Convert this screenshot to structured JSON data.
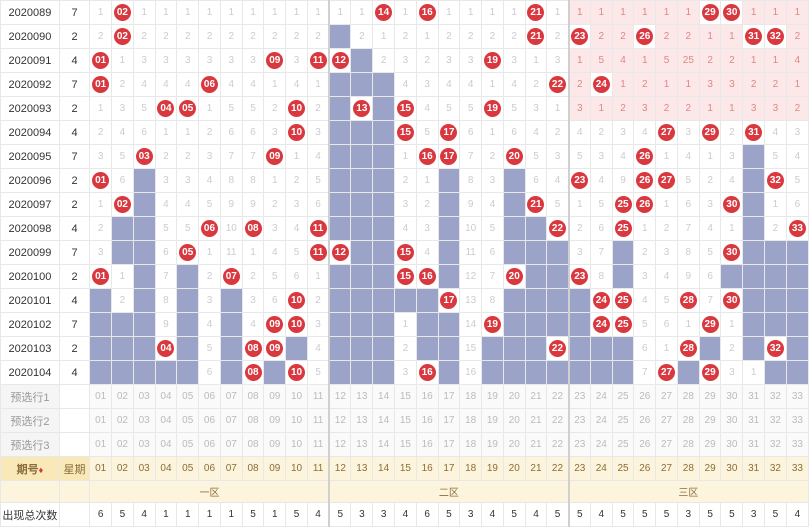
{
  "colors": {
    "ball": "#d9383f",
    "blue": "#9ba3c9",
    "pink": "#fce8e8",
    "header_bg": "#f9e8b8",
    "header_fg": "#8a6d3b",
    "border": "#e8e8e8",
    "muted": "#ccc"
  },
  "zones": {
    "z1": {
      "label": "一区",
      "start": 1,
      "end": 11
    },
    "z2": {
      "label": "二区",
      "start": 12,
      "end": 22
    },
    "z3": {
      "label": "三区",
      "start": 23,
      "end": 33
    }
  },
  "header": {
    "period": "期号",
    "day": "星期",
    "sort_icon": "♦"
  },
  "selection_rows": [
    "预选行1",
    "预选行2",
    "预选行3"
  ],
  "count_label": "出现总次数",
  "counts": [
    6,
    5,
    4,
    1,
    1,
    1,
    1,
    5,
    1,
    5,
    4,
    5,
    3,
    3,
    4,
    6,
    5,
    3,
    4,
    5,
    4,
    5,
    5,
    4,
    5,
    5,
    5,
    3,
    5,
    5,
    3,
    5,
    4
  ],
  "rows": [
    {
      "period": "2020089",
      "day": "7",
      "balls": [
        2,
        14,
        16,
        21,
        29,
        30
      ],
      "blue": [],
      "pink": [
        23,
        24,
        25,
        26,
        27,
        28,
        31,
        32,
        33
      ],
      "miss": {
        "1": 1,
        "3": 1,
        "4": 1,
        "5": 1,
        "6": 1,
        "7": 1,
        "8": 1,
        "9": 1,
        "10": 1,
        "11": 1,
        "12": 1,
        "13": 1,
        "15": 1,
        "17": 1,
        "18": 1,
        "19": 1,
        "20": 1,
        "22": 1,
        "23": 1,
        "24": 1,
        "25": 1,
        "26": 1,
        "27": 1,
        "28": 1,
        "31": 1,
        "32": 1,
        "33": 1
      }
    },
    {
      "period": "2020090",
      "day": "2",
      "balls": [
        2,
        21,
        23,
        26,
        31,
        32
      ],
      "blue": [
        12
      ],
      "pink": [
        24,
        25,
        27,
        28,
        29,
        30,
        33
      ],
      "miss": {
        "1": 2,
        "3": 2,
        "4": 2,
        "5": 2,
        "6": 2,
        "7": 2,
        "8": 2,
        "9": 2,
        "10": 2,
        "11": 2,
        "13": 2,
        "14": 1,
        "15": 2,
        "16": 1,
        "17": 2,
        "18": 2,
        "19": 2,
        "20": 2,
        "22": 2,
        "24": 2,
        "25": 2,
        "27": 2,
        "28": 2,
        "29": 1,
        "30": 1,
        "33": 2
      }
    },
    {
      "period": "2020091",
      "day": "4",
      "balls": [
        1,
        9,
        11,
        12,
        19
      ],
      "blue": [
        13
      ],
      "pink": [
        23,
        24,
        25,
        26,
        27,
        28,
        29,
        30,
        31,
        32,
        33
      ],
      "miss": {
        "2": 1,
        "3": 3,
        "4": 3,
        "5": 3,
        "6": 3,
        "7": 3,
        "8": 3,
        "10": 3,
        "14": 2,
        "15": 3,
        "16": 2,
        "17": 3,
        "18": 3,
        "20": 3,
        "21": 1,
        "22": 3,
        "23": 1,
        "24": 5,
        "25": 4,
        "26": 1,
        "27": 5,
        "28": 25,
        "29": 2,
        "30": 2,
        "31": 1,
        "32": 1,
        "33": 4
      }
    },
    {
      "period": "2020092",
      "day": "7",
      "balls": [
        1,
        6,
        22,
        24
      ],
      "blue": [
        12,
        13,
        14
      ],
      "pink": [
        23,
        25,
        26,
        27,
        28,
        29,
        30,
        31,
        32,
        33
      ],
      "miss": {
        "2": 2,
        "3": 4,
        "4": 4,
        "5": 4,
        "7": 4,
        "8": 4,
        "9": 1,
        "10": 4,
        "11": 1,
        "15": 4,
        "16": 3,
        "17": 4,
        "18": 4,
        "19": 1,
        "20": 4,
        "21": 2,
        "23": 2,
        "25": 1,
        "26": 2,
        "27": 1,
        "28": 1,
        "29": 3,
        "30": 3,
        "31": 2,
        "32": 2,
        "33": 1
      }
    },
    {
      "period": "2020093",
      "day": "2",
      "balls": [
        4,
        5,
        10,
        13,
        15,
        19
      ],
      "blue": [
        12,
        14
      ],
      "pink": [
        23,
        24,
        25,
        26,
        27,
        28,
        29,
        30,
        31,
        32,
        33
      ],
      "miss": {
        "1": 1,
        "2": 3,
        "3": 5,
        "6": 1,
        "7": 5,
        "8": 5,
        "9": 2,
        "11": 2,
        "16": 4,
        "17": 5,
        "18": 5,
        "20": 5,
        "21": 3,
        "22": 1,
        "23": 3,
        "24": 1,
        "25": 2,
        "26": 3,
        "27": 2,
        "28": 2,
        "29": 1,
        "30": 1,
        "31": 3,
        "32": 3,
        "33": 2
      }
    },
    {
      "period": "2020094",
      "day": "4",
      "balls": [
        10,
        15,
        17,
        27,
        29,
        31
      ],
      "blue": [
        12,
        13,
        14
      ],
      "pink": [],
      "miss": {
        "1": 2,
        "2": 4,
        "3": 6,
        "4": 1,
        "5": 1,
        "6": 2,
        "7": 6,
        "8": 6,
        "9": 3,
        "11": 3,
        "16": 5,
        "18": 6,
        "19": 1,
        "20": 6,
        "21": 4,
        "22": 2,
        "23": 4,
        "24": 2,
        "25": 3,
        "26": 4,
        "28": 3,
        "30": 2,
        "32": 4,
        "33": 3
      }
    },
    {
      "period": "2020095",
      "day": "7",
      "balls": [
        3,
        9,
        16,
        17,
        20,
        26
      ],
      "blue": [
        12,
        13,
        14,
        31
      ],
      "pink": [],
      "miss": {
        "1": 3,
        "2": 5,
        "4": 2,
        "5": 2,
        "6": 3,
        "7": 7,
        "8": 7,
        "10": 1,
        "11": 4,
        "15": 1,
        "18": 7,
        "19": 2,
        "21": 5,
        "22": 3,
        "23": 5,
        "24": 3,
        "25": 4,
        "27": 1,
        "28": 4,
        "29": 1,
        "30": 3,
        "32": 5,
        "33": 4
      }
    },
    {
      "period": "2020096",
      "day": "2",
      "balls": [
        1,
        23,
        26,
        27,
        32
      ],
      "blue": [
        3,
        12,
        13,
        14,
        17,
        20,
        31
      ],
      "pink": [],
      "miss": {
        "2": 6,
        "4": 3,
        "5": 3,
        "6": 4,
        "7": 8,
        "8": 8,
        "9": 1,
        "10": 2,
        "11": 5,
        "15": 2,
        "16": 1,
        "18": 8,
        "19": 3,
        "21": 6,
        "22": 4,
        "24": 4,
        "25": 9,
        "28": 5,
        "29": 2,
        "30": 4,
        "33": 5
      }
    },
    {
      "period": "2020097",
      "day": "2",
      "balls": [
        2,
        21,
        25,
        26,
        30
      ],
      "blue": [
        3,
        12,
        13,
        14,
        17,
        20,
        31
      ],
      "pink": [],
      "miss": {
        "1": 1,
        "4": 4,
        "5": 4,
        "6": 5,
        "7": 9,
        "8": 9,
        "9": 2,
        "10": 3,
        "11": 6,
        "15": 3,
        "16": 2,
        "18": 9,
        "19": 4,
        "22": 5,
        "23": 1,
        "24": 5,
        "27": 1,
        "28": 6,
        "29": 3,
        "32": 1,
        "33": 6
      }
    },
    {
      "period": "2020098",
      "day": "4",
      "balls": [
        6,
        8,
        11,
        22,
        25,
        33
      ],
      "blue": [
        2,
        3,
        12,
        13,
        14,
        17,
        20,
        21,
        31
      ],
      "pink": [],
      "miss": {
        "1": 2,
        "4": 5,
        "5": 5,
        "7": 10,
        "9": 3,
        "10": 4,
        "15": 4,
        "16": 3,
        "18": 10,
        "19": 5,
        "23": 2,
        "24": 6,
        "26": 1,
        "27": 2,
        "28": 7,
        "29": 4,
        "30": 1,
        "32": 2
      }
    },
    {
      "period": "2020099",
      "day": "7",
      "balls": [
        5,
        11,
        12,
        15,
        30
      ],
      "blue": [
        2,
        3,
        13,
        14,
        17,
        20,
        21,
        22,
        25,
        31,
        32,
        33
      ],
      "pink": [],
      "miss": {
        "1": 3,
        "4": 6,
        "6": 1,
        "7": 11,
        "8": 1,
        "9": 4,
        "10": 5,
        "16": 4,
        "18": 11,
        "19": 6,
        "23": 3,
        "24": 7,
        "26": 2,
        "27": 3,
        "28": 8,
        "29": 5
      }
    },
    {
      "period": "2020100",
      "day": "2",
      "balls": [
        1,
        7,
        15,
        16,
        20,
        23
      ],
      "blue": [
        3,
        5,
        12,
        13,
        14,
        17,
        21,
        22,
        25,
        30,
        31,
        32,
        33
      ],
      "pink": [],
      "miss": {
        "2": 1,
        "4": 7,
        "6": 2,
        "8": 2,
        "9": 5,
        "10": 6,
        "11": 1,
        "18": 12,
        "19": 7,
        "24": 8,
        "26": 3,
        "27": 4,
        "28": 9,
        "29": 6
      }
    },
    {
      "period": "2020101",
      "day": "4",
      "balls": [
        10,
        17,
        24,
        25,
        28,
        30
      ],
      "blue": [
        1,
        3,
        5,
        7,
        12,
        13,
        14,
        15,
        16,
        20,
        21,
        22,
        23,
        31,
        32,
        33
      ],
      "pink": [],
      "miss": {
        "2": 2,
        "4": 8,
        "6": 3,
        "8": 3,
        "9": 6,
        "11": 2,
        "18": 13,
        "19": 8,
        "26": 4,
        "27": 5,
        "29": 7
      }
    },
    {
      "period": "2020102",
      "day": "7",
      "balls": [
        9,
        10,
        19,
        24,
        25,
        29
      ],
      "blue": [
        1,
        2,
        3,
        5,
        7,
        12,
        13,
        14,
        16,
        17,
        20,
        21,
        22,
        23,
        31,
        32,
        33
      ],
      "pink": [],
      "miss": {
        "4": 9,
        "6": 4,
        "8": 4,
        "11": 3,
        "15": 1,
        "18": 14,
        "26": 5,
        "27": 6,
        "28": 1,
        "30": 1
      }
    },
    {
      "period": "2020103",
      "day": "2",
      "balls": [
        4,
        8,
        9,
        22,
        28,
        32
      ],
      "blue": [
        1,
        2,
        3,
        5,
        7,
        10,
        12,
        13,
        14,
        16,
        17,
        19,
        20,
        21,
        23,
        24,
        25,
        29,
        31,
        33
      ],
      "pink": [],
      "miss": {
        "6": 5,
        "11": 4,
        "15": 2,
        "18": 15,
        "26": 6,
        "27": 1,
        "30": 2
      }
    },
    {
      "period": "2020104",
      "day": "4",
      "balls": [
        8,
        10,
        16,
        27,
        29
      ],
      "blue": [
        1,
        2,
        3,
        4,
        5,
        7,
        9,
        12,
        13,
        14,
        17,
        19,
        20,
        21,
        22,
        23,
        24,
        25,
        28,
        32,
        33
      ],
      "pink": [],
      "miss": {
        "6": 6,
        "11": 5,
        "15": 3,
        "18": 16,
        "26": 7,
        "30": 3,
        "31": 1
      }
    }
  ]
}
